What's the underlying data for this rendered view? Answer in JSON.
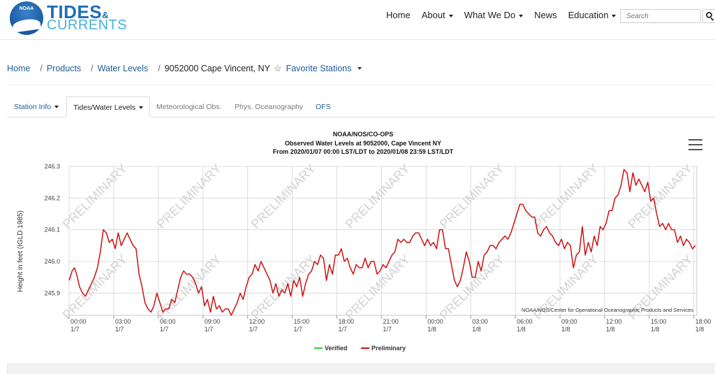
{
  "header": {
    "logo_top": "TIDES",
    "logo_amp": "&",
    "logo_bottom": "CURRENTS",
    "logo_badge": "NOAA",
    "nav": [
      {
        "label": "Home",
        "dropdown": false
      },
      {
        "label": "About",
        "dropdown": true
      },
      {
        "label": "What We Do",
        "dropdown": true
      },
      {
        "label": "News",
        "dropdown": false
      },
      {
        "label": "Education",
        "dropdown": true
      }
    ],
    "search_placeholder": "Search"
  },
  "breadcrumb": {
    "items": [
      "Home",
      "Products",
      "Water Levels"
    ],
    "current": "9052000 Cape Vincent, NY",
    "favorites": "Favorite Stations"
  },
  "tabs": [
    {
      "label": "Station Info",
      "dropdown": true,
      "style": "link"
    },
    {
      "label": "Tides/Water Levels",
      "dropdown": true,
      "style": "active"
    },
    {
      "label": "Meteorological Obs.",
      "dropdown": false,
      "style": "muted"
    },
    {
      "label": "Phys. Oceanography",
      "dropdown": false,
      "style": "muted"
    },
    {
      "label": "OFS",
      "dropdown": false,
      "style": "link"
    }
  ],
  "chart_data": {
    "type": "line",
    "title": "NOAA/NOS/CO-OPS",
    "subtitle": "Observed Water Levels at 9052000, Cape Vincent NY",
    "subtitle2": "From 2020/01/07 00:00 LST/LDT to 2020/01/08 23:59 LST/LDT",
    "ylabel": "Height in feet (IGLD 1985)",
    "xlabel": "",
    "ylim": [
      245.83,
      246.3
    ],
    "xlim": [
      0,
      42.2
    ],
    "yticks": [
      245.9,
      246.0,
      246.1,
      246.2,
      246.3
    ],
    "ytick_labels": [
      "245.9",
      "246.0",
      "246.1",
      "246.2",
      "246.3"
    ],
    "xticks": [
      {
        "x": 0,
        "label": "00:00",
        "date": "1/7"
      },
      {
        "x": 3,
        "label": "03:00",
        "date": "1/7"
      },
      {
        "x": 6,
        "label": "06:00",
        "date": "1/7"
      },
      {
        "x": 9,
        "label": "09:00",
        "date": "1/7"
      },
      {
        "x": 12,
        "label": "12:00",
        "date": "1/7"
      },
      {
        "x": 15,
        "label": "15:00",
        "date": "1/7"
      },
      {
        "x": 18,
        "label": "18:00",
        "date": "1/7"
      },
      {
        "x": 21,
        "label": "21:00",
        "date": "1/7"
      },
      {
        "x": 24,
        "label": "00:00",
        "date": "1/8"
      },
      {
        "x": 27,
        "label": "03:00",
        "date": "1/8"
      },
      {
        "x": 30,
        "label": "06:00",
        "date": "1/8"
      },
      {
        "x": 33,
        "label": "09:00",
        "date": "1/8"
      },
      {
        "x": 36,
        "label": "12:00",
        "date": "1/8"
      },
      {
        "x": 39,
        "label": "15:00",
        "date": "1/8"
      },
      {
        "x": 42,
        "label": "18:00",
        "date": "1/8"
      }
    ],
    "grid": true,
    "watermark": "PRELIMINARY",
    "credit": "NOAA/NOS/Center for Operational Oceanographic Products and Services",
    "legend_position": "bottom",
    "series": [
      {
        "name": "Verified",
        "color": "#33cc33",
        "x": [],
        "y": []
      },
      {
        "name": "Preliminary",
        "color": "#cc1111",
        "x": [
          0,
          0.2,
          0.35,
          0.5,
          0.7,
          0.9,
          1.1,
          1.3,
          1.5,
          1.7,
          1.9,
          2.1,
          2.3,
          2.5,
          2.7,
          2.9,
          3.1,
          3.3,
          3.5,
          3.7,
          3.9,
          4.1,
          4.3,
          4.5,
          4.7,
          4.9,
          5.1,
          5.3,
          5.5,
          5.7,
          5.9,
          6.1,
          6.3,
          6.5,
          6.7,
          6.9,
          7.1,
          7.3,
          7.5,
          7.7,
          7.9,
          8.1,
          8.3,
          8.5,
          8.7,
          8.9,
          9.1,
          9.3,
          9.5,
          9.7,
          9.9,
          10.1,
          10.3,
          10.5,
          10.7,
          10.9,
          11.1,
          11.3,
          11.5,
          11.7,
          11.9,
          12.1,
          12.3,
          12.5,
          12.7,
          12.9,
          13.1,
          13.3,
          13.5,
          13.7,
          13.9,
          14.1,
          14.3,
          14.5,
          14.7,
          14.9,
          15.1,
          15.3,
          15.5,
          15.7,
          15.9,
          16.1,
          16.3,
          16.5,
          16.7,
          16.9,
          17.1,
          17.3,
          17.5,
          17.7,
          17.9,
          18.1,
          18.3,
          18.5,
          18.7,
          18.9,
          19.1,
          19.3,
          19.5,
          19.7,
          19.9,
          20.1,
          20.3,
          20.5,
          20.7,
          20.9,
          21.1,
          21.3,
          21.5,
          21.7,
          21.9,
          22.1,
          22.3,
          22.5,
          22.7,
          22.9,
          23.1,
          23.3,
          23.5,
          23.7,
          23.9,
          24.1,
          24.3,
          24.5,
          24.7,
          24.9,
          25.1,
          25.3,
          25.5,
          25.7,
          25.9,
          26.1,
          26.3,
          26.5,
          26.7,
          26.9,
          27.1,
          27.3,
          27.5,
          27.7,
          27.9,
          28.1,
          28.3,
          28.5,
          28.7,
          28.9,
          29.1,
          29.3,
          29.5,
          29.7,
          29.9,
          30.1,
          30.3,
          30.5,
          30.7,
          30.9,
          31.1,
          31.3,
          31.5,
          31.7,
          31.9,
          32.1,
          32.3,
          32.5,
          32.7,
          32.9,
          33.1,
          33.3,
          33.5,
          33.7,
          33.9,
          34.1,
          34.3,
          34.5,
          34.7,
          34.9,
          35.1,
          35.3,
          35.5,
          35.7,
          35.9,
          36.1,
          36.3,
          36.5,
          36.7,
          36.9,
          37.1,
          37.3,
          37.5,
          37.7,
          37.9,
          38.1,
          38.3,
          38.5,
          38.7,
          38.9,
          39.1,
          39.3,
          39.5,
          39.7,
          39.9,
          40.1,
          40.3,
          40.5,
          40.7,
          40.9,
          41.1,
          41.3,
          41.5,
          41.7,
          41.9,
          42.1
        ],
        "y": [
          245.94,
          245.97,
          245.98,
          245.96,
          245.92,
          245.9,
          245.89,
          245.91,
          245.93,
          245.95,
          245.98,
          246.03,
          246.1,
          246.09,
          246.06,
          246.07,
          246.04,
          246.09,
          246.05,
          246.07,
          246.09,
          246.07,
          246.05,
          246.04,
          245.96,
          245.92,
          245.87,
          245.85,
          245.84,
          245.86,
          245.9,
          245.87,
          245.84,
          245.85,
          245.85,
          245.88,
          245.87,
          245.91,
          245.95,
          245.97,
          245.96,
          245.96,
          245.95,
          245.93,
          245.9,
          245.92,
          245.86,
          245.88,
          245.84,
          245.89,
          245.85,
          245.86,
          245.84,
          245.85,
          245.85,
          245.83,
          245.85,
          245.87,
          245.9,
          245.88,
          245.92,
          245.95,
          245.96,
          245.99,
          245.97,
          246.0,
          245.98,
          245.96,
          245.94,
          245.9,
          245.93,
          245.89,
          245.91,
          245.9,
          245.93,
          245.89,
          245.94,
          245.92,
          245.95,
          245.89,
          245.93,
          245.96,
          245.97,
          246.0,
          245.99,
          246.02,
          246.01,
          245.94,
          245.99,
          245.96,
          246.02,
          246.02,
          246.04,
          246.0,
          246.01,
          245.98,
          245.96,
          245.99,
          245.98,
          245.98,
          246.01,
          245.98,
          246.0,
          246.0,
          245.96,
          245.97,
          245.99,
          245.98,
          246.0,
          246.02,
          246.03,
          246.07,
          246.06,
          246.07,
          246.06,
          246.06,
          246.08,
          246.09,
          246.09,
          246.07,
          246.05,
          246.07,
          246.05,
          246.06,
          246.04,
          246.1,
          246.1,
          246.04,
          246.04,
          245.99,
          245.94,
          245.92,
          245.94,
          245.98,
          246.03,
          246.0,
          245.95,
          245.95,
          246.0,
          245.97,
          246.02,
          246.03,
          246.05,
          246.05,
          246.04,
          246.06,
          246.07,
          246.08,
          246.07,
          246.09,
          246.12,
          246.15,
          246.18,
          246.18,
          246.16,
          246.15,
          246.14,
          246.14,
          246.09,
          246.08,
          246.1,
          246.11,
          246.09,
          246.08,
          246.06,
          246.05,
          246.07,
          246.04,
          246.06,
          246.05,
          245.98,
          246.02,
          246.03,
          246.11,
          246.02,
          246.06,
          246.03,
          246.08,
          246.05,
          246.11,
          246.1,
          246.12,
          246.16,
          246.16,
          246.2,
          246.21,
          246.24,
          246.29,
          246.28,
          246.22,
          246.28,
          246.24,
          246.26,
          246.24,
          246.22,
          246.25,
          246.19,
          246.2,
          246.15,
          246.11,
          246.12,
          246.1,
          246.12,
          246.1,
          246.1,
          246.06,
          246.08,
          246.05,
          246.07,
          246.06,
          246.04,
          246.05
        ]
      }
    ]
  }
}
